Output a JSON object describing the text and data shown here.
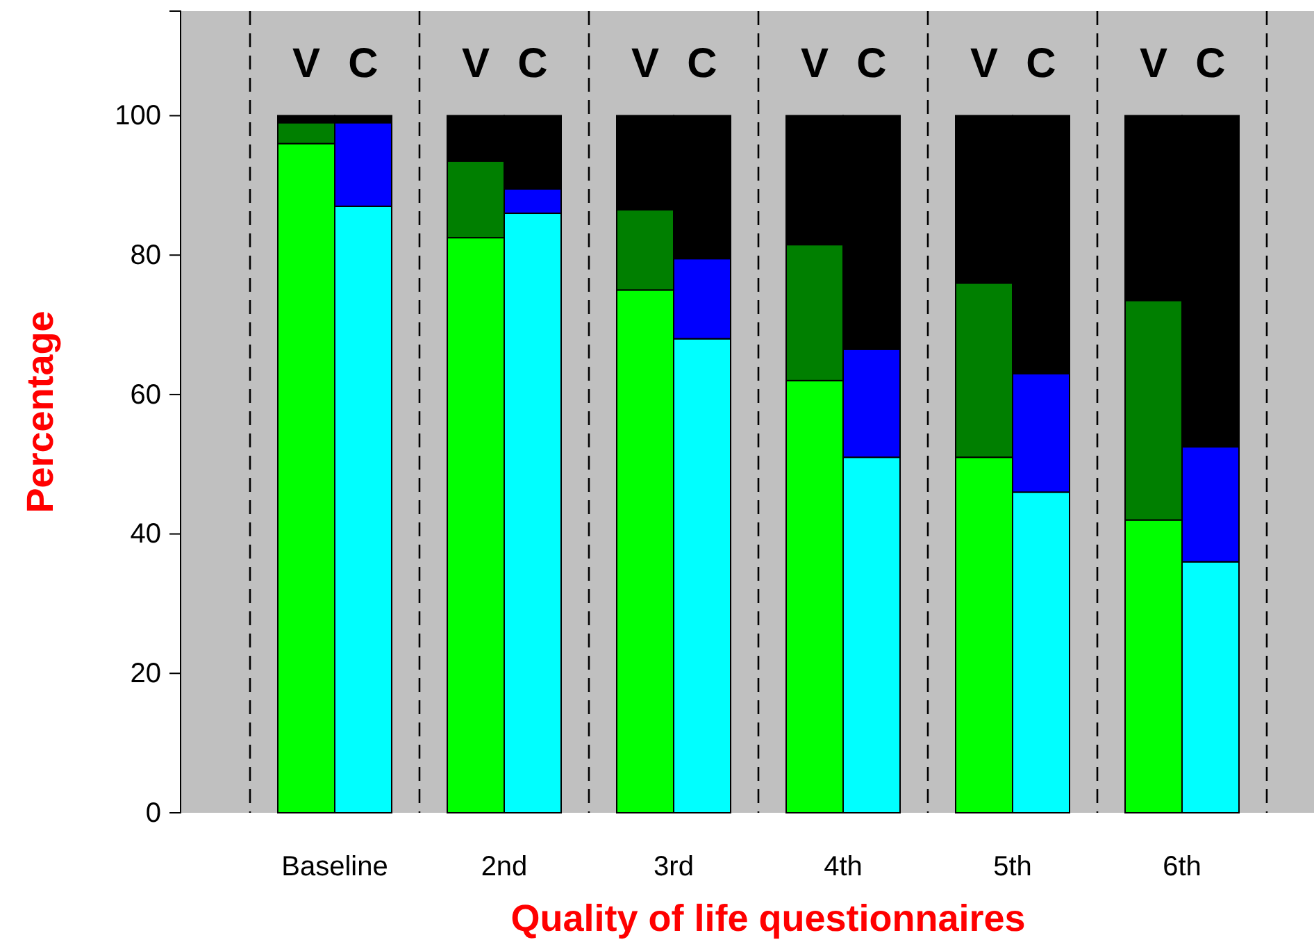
{
  "chart_data": {
    "type": "bar",
    "stacked": true,
    "xlabel": "Quality of life questionnaires",
    "ylabel": "Percentage",
    "categories": [
      "V",
      "C",
      "V",
      "C",
      "V",
      "C",
      "V",
      "C",
      "V",
      "C",
      "V",
      "C"
    ],
    "series": [
      {
        "colors": [
          "#00ff00",
          "#00ffff",
          "#00ff00",
          "#00ffff",
          "#00ff00",
          "#00ffff",
          "#00ff00",
          "#00ffff",
          "#00ff00",
          "#00ffff",
          "#00ff00",
          "#00ffff"
        ],
        "values": [
          96,
          87,
          82.5,
          86,
          75,
          68,
          62,
          51,
          51,
          46,
          42,
          36
        ]
      },
      {
        "colors": [
          "#007f00",
          "#0000ff",
          "#007f00",
          "#0000ff",
          "#007f00",
          "#0000ff",
          "#007f00",
          "#0000ff",
          "#007f00",
          "#0000ff",
          "#007f00",
          "#0000ff"
        ],
        "values": [
          3,
          12,
          11,
          3.5,
          11.5,
          11.5,
          19.5,
          15.5,
          25,
          17,
          31.5,
          16.5
        ]
      },
      {
        "color": "#000000",
        "values": [
          1,
          1,
          6.5,
          10.5,
          13.5,
          20.5,
          18.5,
          33.5,
          24,
          37,
          26.5,
          47.5
        ]
      }
    ],
    "annotations": [
      "Baseline",
      "2nd",
      "3rd",
      "4th",
      "5th",
      "6th"
    ],
    "ylim": [
      0,
      115
    ],
    "yticks": [
      0,
      20,
      40,
      60,
      80,
      100
    ],
    "grid": "x"
  }
}
